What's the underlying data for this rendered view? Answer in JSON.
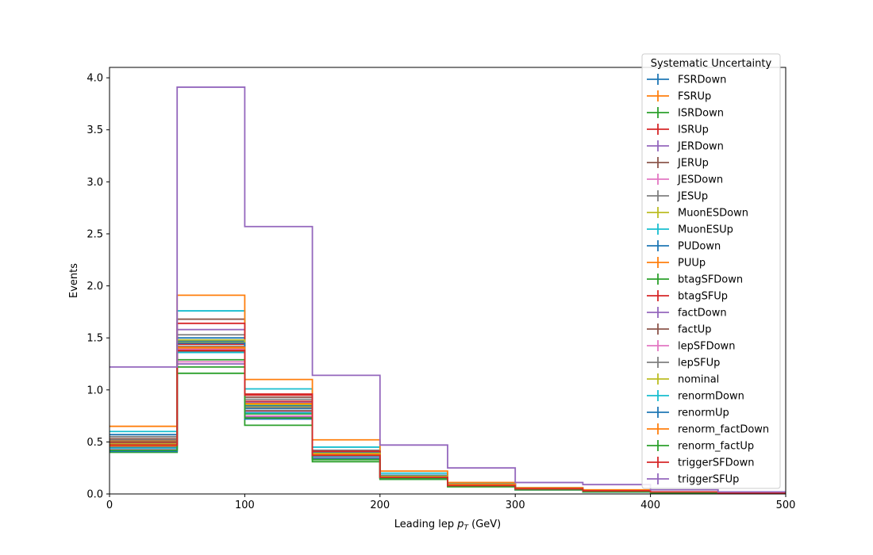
{
  "chart_data": {
    "type": "line",
    "drawstyle": "steps",
    "xlabel_main": "Leading lep ",
    "xlabel_sym": "p",
    "xlabel_sub": "T",
    "xlabel_unit": " (GeV)",
    "ylabel": "Events",
    "xlim": [
      0,
      500
    ],
    "ylim": [
      0,
      4.1
    ],
    "xticks": [
      0,
      100,
      200,
      300,
      400,
      500
    ],
    "yticks": [
      0.0,
      0.5,
      1.0,
      1.5,
      2.0,
      2.5,
      3.0,
      3.5,
      4.0
    ],
    "grid": false,
    "legend": {
      "title": "Systematic Uncertainty",
      "placement": "top-right"
    },
    "bin_edges": [
      0,
      50,
      100,
      150,
      200,
      250,
      300,
      350,
      400,
      450,
      500
    ],
    "series": [
      {
        "name": "FSRDown",
        "color": "#1f77b4",
        "values": [
          0.45,
          1.5,
          0.82,
          0.38,
          0.17,
          0.09,
          0.05,
          0.03,
          0.02,
          0.01
        ]
      },
      {
        "name": "FSRUp",
        "color": "#ff7f0e",
        "values": [
          0.51,
          1.4,
          0.86,
          0.39,
          0.17,
          0.09,
          0.05,
          0.03,
          0.02,
          0.01
        ]
      },
      {
        "name": "ISRDown",
        "color": "#2ca02c",
        "values": [
          0.47,
          1.29,
          0.77,
          0.36,
          0.16,
          0.08,
          0.05,
          0.03,
          0.02,
          0.01
        ]
      },
      {
        "name": "ISRUp",
        "color": "#d62728",
        "values": [
          0.49,
          1.44,
          0.89,
          0.4,
          0.18,
          0.09,
          0.05,
          0.03,
          0.02,
          0.01
        ]
      },
      {
        "name": "JERDown",
        "color": "#9467bd",
        "values": [
          0.48,
          1.58,
          0.88,
          0.39,
          0.17,
          0.09,
          0.05,
          0.03,
          0.02,
          0.01
        ]
      },
      {
        "name": "JERUp",
        "color": "#8c564b",
        "values": [
          0.53,
          1.68,
          0.93,
          0.41,
          0.18,
          0.09,
          0.05,
          0.03,
          0.02,
          0.01
        ]
      },
      {
        "name": "JESDown",
        "color": "#e377c2",
        "values": [
          0.46,
          1.39,
          0.79,
          0.37,
          0.16,
          0.08,
          0.05,
          0.03,
          0.02,
          0.01
        ]
      },
      {
        "name": "JESUp",
        "color": "#7f7f7f",
        "values": [
          0.55,
          1.53,
          0.91,
          0.42,
          0.18,
          0.1,
          0.05,
          0.03,
          0.02,
          0.01
        ]
      },
      {
        "name": "MuonESDown",
        "color": "#bcbd22",
        "values": [
          0.5,
          1.46,
          0.84,
          0.38,
          0.17,
          0.09,
          0.05,
          0.03,
          0.02,
          0.01
        ]
      },
      {
        "name": "MuonESUp",
        "color": "#17becf",
        "values": [
          0.6,
          1.76,
          1.01,
          0.45,
          0.2,
          0.1,
          0.06,
          0.03,
          0.02,
          0.01
        ]
      },
      {
        "name": "PUDown",
        "color": "#1f77b4",
        "values": [
          0.57,
          1.47,
          0.85,
          0.4,
          0.18,
          0.09,
          0.05,
          0.03,
          0.02,
          0.01
        ]
      },
      {
        "name": "PUUp",
        "color": "#ff7f0e",
        "values": [
          0.65,
          1.91,
          1.1,
          0.52,
          0.22,
          0.11,
          0.06,
          0.04,
          0.02,
          0.01
        ]
      },
      {
        "name": "btagSFDown",
        "color": "#2ca02c",
        "values": [
          0.4,
          1.16,
          0.66,
          0.31,
          0.14,
          0.07,
          0.04,
          0.02,
          0.01,
          0.01
        ]
      },
      {
        "name": "btagSFUp",
        "color": "#d62728",
        "values": [
          0.44,
          1.64,
          0.96,
          0.41,
          0.17,
          0.09,
          0.05,
          0.03,
          0.02,
          0.01
        ]
      },
      {
        "name": "factDown",
        "color": "#9467bd",
        "values": [
          0.42,
          1.25,
          0.74,
          0.35,
          0.15,
          0.08,
          0.04,
          0.02,
          0.02,
          0.01
        ]
      },
      {
        "name": "factUp",
        "color": "#8c564b",
        "values": [
          0.5,
          1.37,
          0.8,
          0.37,
          0.16,
          0.08,
          0.05,
          0.03,
          0.02,
          0.01
        ]
      },
      {
        "name": "lepSFDown",
        "color": "#e377c2",
        "values": [
          0.43,
          1.27,
          0.75,
          0.35,
          0.15,
          0.08,
          0.04,
          0.02,
          0.02,
          0.01
        ]
      },
      {
        "name": "lepSFUp",
        "color": "#7f7f7f",
        "values": [
          0.52,
          1.42,
          0.83,
          0.39,
          0.17,
          0.09,
          0.05,
          0.03,
          0.02,
          0.01
        ]
      },
      {
        "name": "nominal",
        "color": "#bcbd22",
        "values": [
          0.48,
          1.48,
          0.86,
          0.39,
          0.17,
          0.09,
          0.05,
          0.03,
          0.02,
          0.01
        ]
      },
      {
        "name": "renormDown",
        "color": "#17becf",
        "values": [
          0.44,
          1.36,
          0.78,
          0.36,
          0.16,
          0.08,
          0.05,
          0.03,
          0.02,
          0.01
        ]
      },
      {
        "name": "renormUp",
        "color": "#1f77b4",
        "values": [
          0.41,
          1.45,
          0.72,
          0.34,
          0.15,
          0.08,
          0.04,
          0.02,
          0.02,
          0.01
        ]
      },
      {
        "name": "renorm_factDown",
        "color": "#ff7f0e",
        "values": [
          0.46,
          1.41,
          0.87,
          0.38,
          0.16,
          0.09,
          0.05,
          0.03,
          0.02,
          0.01
        ]
      },
      {
        "name": "renorm_factUp",
        "color": "#2ca02c",
        "values": [
          0.42,
          1.22,
          0.73,
          0.33,
          0.15,
          0.07,
          0.04,
          0.02,
          0.02,
          0.01
        ]
      },
      {
        "name": "triggerSFDown",
        "color": "#d62728",
        "values": [
          0.47,
          1.38,
          0.95,
          0.37,
          0.16,
          0.08,
          0.05,
          0.03,
          0.02,
          0.01
        ]
      },
      {
        "name": "triggerSFUp",
        "color": "#9467bd",
        "values": [
          1.22,
          3.91,
          2.57,
          1.14,
          0.47,
          0.25,
          0.11,
          0.09,
          0.04,
          0.02
        ]
      }
    ]
  }
}
